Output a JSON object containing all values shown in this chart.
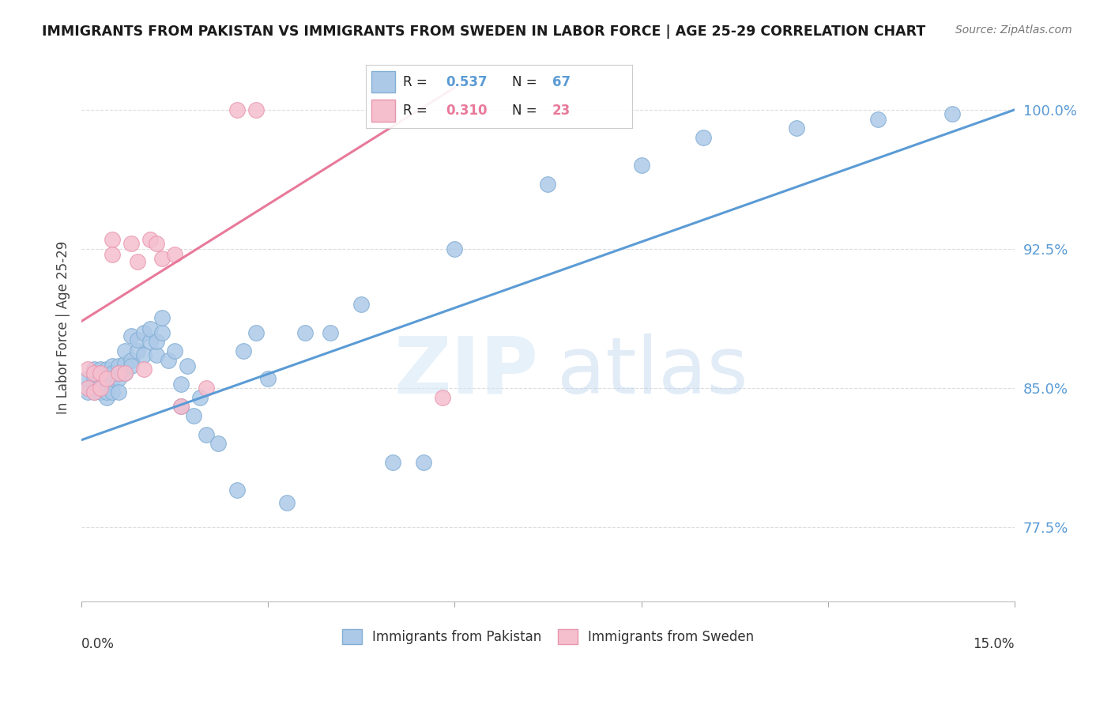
{
  "title": "IMMIGRANTS FROM PAKISTAN VS IMMIGRANTS FROM SWEDEN IN LABOR FORCE | AGE 25-29 CORRELATION CHART",
  "source": "Source: ZipAtlas.com",
  "ylabel_label": "In Labor Force | Age 25-29",
  "y_ticks": [
    0.775,
    0.85,
    0.925,
    1.0
  ],
  "y_tick_labels": [
    "77.5%",
    "85.0%",
    "92.5%",
    "100.0%"
  ],
  "x_min": 0.0,
  "x_max": 0.15,
  "y_min": 0.735,
  "y_max": 1.03,
  "pakistan_color": "#adc9e8",
  "pakistan_edge_color": "#82aed4",
  "sweden_color": "#f5bfce",
  "sweden_edge_color": "#e896ae",
  "pakistan_line_color": "#5b9bd5",
  "sweden_line_color": "#e8799a",
  "pakistan_R": "0.537",
  "pakistan_N": "67",
  "sweden_R": "0.310",
  "sweden_N": "23",
  "pakistan_scatter_x": [
    0.001,
    0.001,
    0.001,
    0.002,
    0.002,
    0.002,
    0.002,
    0.003,
    0.003,
    0.003,
    0.003,
    0.003,
    0.004,
    0.004,
    0.004,
    0.004,
    0.004,
    0.005,
    0.005,
    0.005,
    0.005,
    0.006,
    0.006,
    0.006,
    0.006,
    0.007,
    0.007,
    0.007,
    0.008,
    0.008,
    0.008,
    0.009,
    0.009,
    0.01,
    0.01,
    0.011,
    0.011,
    0.012,
    0.012,
    0.013,
    0.013,
    0.014,
    0.015,
    0.016,
    0.016,
    0.017,
    0.018,
    0.019,
    0.02,
    0.022,
    0.025,
    0.026,
    0.028,
    0.03,
    0.033,
    0.036,
    0.04,
    0.045,
    0.05,
    0.055,
    0.06,
    0.075,
    0.09,
    0.1,
    0.115,
    0.128,
    0.14
  ],
  "pakistan_scatter_y": [
    0.85,
    0.855,
    0.848,
    0.852,
    0.856,
    0.848,
    0.86,
    0.85,
    0.855,
    0.848,
    0.86,
    0.85,
    0.845,
    0.85,
    0.855,
    0.848,
    0.86,
    0.848,
    0.855,
    0.862,
    0.858,
    0.855,
    0.862,
    0.848,
    0.858,
    0.858,
    0.863,
    0.87,
    0.865,
    0.862,
    0.878,
    0.87,
    0.876,
    0.868,
    0.88,
    0.875,
    0.882,
    0.868,
    0.875,
    0.88,
    0.888,
    0.865,
    0.87,
    0.84,
    0.852,
    0.862,
    0.835,
    0.845,
    0.825,
    0.82,
    0.795,
    0.87,
    0.88,
    0.855,
    0.788,
    0.88,
    0.88,
    0.895,
    0.81,
    0.81,
    0.925,
    0.96,
    0.97,
    0.985,
    0.99,
    0.995,
    0.998
  ],
  "sweden_scatter_x": [
    0.001,
    0.001,
    0.002,
    0.002,
    0.003,
    0.003,
    0.004,
    0.005,
    0.005,
    0.006,
    0.007,
    0.008,
    0.009,
    0.01,
    0.011,
    0.012,
    0.013,
    0.015,
    0.016,
    0.02,
    0.025,
    0.028,
    0.058
  ],
  "sweden_scatter_y": [
    0.85,
    0.86,
    0.848,
    0.858,
    0.85,
    0.858,
    0.855,
    0.93,
    0.922,
    0.858,
    0.858,
    0.928,
    0.918,
    0.86,
    0.93,
    0.928,
    0.92,
    0.922,
    0.84,
    0.85,
    1.0,
    1.0,
    0.845
  ],
  "pakistan_line_x0": 0.0,
  "pakistan_line_y0": 0.822,
  "pakistan_line_x1": 0.15,
  "pakistan_line_y1": 1.0,
  "sweden_line_x0": 0.0,
  "sweden_line_y0": 0.886,
  "sweden_line_x1": 0.06,
  "sweden_line_y1": 1.012,
  "watermark_zip": "ZIP",
  "watermark_atlas": "atlas",
  "background_color": "#ffffff",
  "grid_color": "#dddddd",
  "grid_style": "--"
}
